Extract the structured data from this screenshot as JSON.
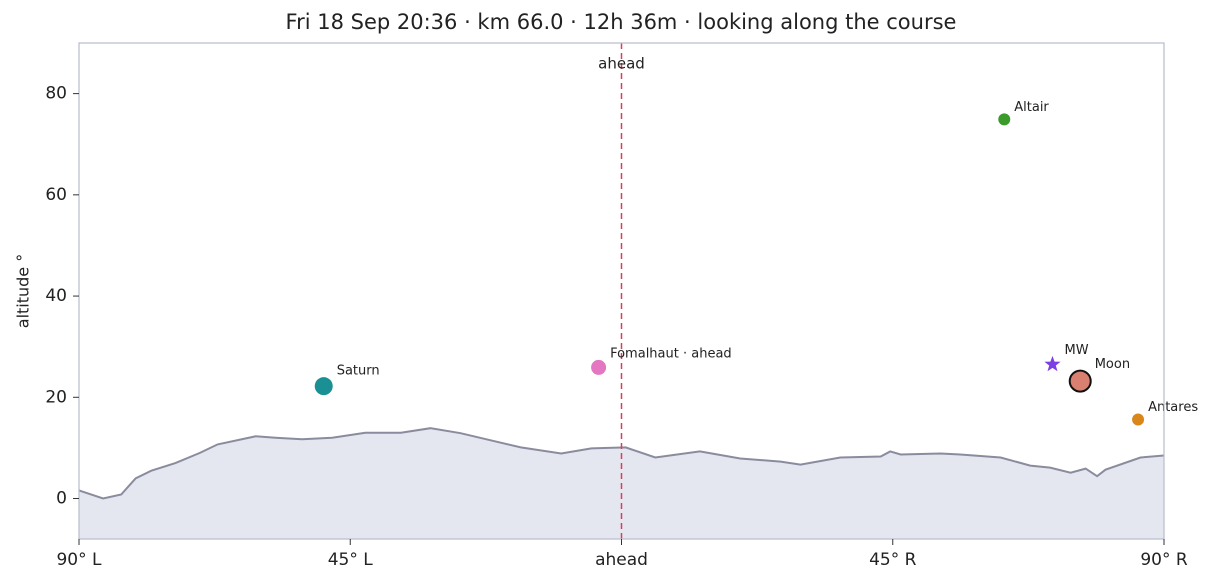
{
  "chart_data": {
    "type": "sky",
    "title": "Fri 18 Sep 20:36  ·  km 66.0  ·  12h 36m  ·  looking along the course",
    "ylabel": "altitude °",
    "xlim": [
      -90,
      90
    ],
    "ylim": [
      -8,
      90
    ],
    "xticks": [
      {
        "value": -90,
        "label": "90° L"
      },
      {
        "value": -45,
        "label": "45° L"
      },
      {
        "value": 0,
        "label": "ahead"
      },
      {
        "value": 45,
        "label": "45° R"
      },
      {
        "value": 90,
        "label": "90° R"
      }
    ],
    "yticks": [
      0,
      20,
      40,
      60,
      80
    ],
    "reference": {
      "x": 0,
      "label": "ahead",
      "color": "#dc3c5a"
    },
    "horizon": {
      "color": "#8a8c9e",
      "fill": "#e4e6f0",
      "x": [
        -90,
        -86,
        -83,
        -80.6,
        -78,
        -74,
        -70,
        -67,
        -60.7,
        -57.4,
        -53,
        -48,
        -42.5,
        -36.6,
        -31.7,
        -26.7,
        -21.7,
        -16.7,
        -10,
        -5,
        0.7,
        5.6,
        13,
        19.7,
        26.4,
        29.7,
        36.3,
        43,
        44.6,
        46.3,
        52.9,
        56.2,
        62.9,
        67.8,
        71.1,
        74.5,
        77,
        78.9,
        80.3,
        86.1,
        90
      ],
      "values": [
        1.6,
        0,
        0.8,
        4,
        5.5,
        7,
        9,
        10.7,
        12.3,
        12,
        11.7,
        12,
        13,
        13,
        13.9,
        12.9,
        11.5,
        10.1,
        8.9,
        9.9,
        10.1,
        8.1,
        9.3,
        7.9,
        7.3,
        6.7,
        8.1,
        8.3,
        9.3,
        8.7,
        8.9,
        8.7,
        8.1,
        6.5,
        6.1,
        5.1,
        5.9,
        4.4,
        5.7,
        8.1,
        8.5
      ]
    },
    "objects": [
      {
        "name": "Saturn",
        "x": -49.4,
        "y": 22.2,
        "color": "#1a8f94",
        "label_color": "#1a8f94",
        "marker": "large"
      },
      {
        "name": "Fomalhaut · ahead",
        "x": -3.8,
        "y": 25.9,
        "color": "#e377c2",
        "label_color": "#e08a1e",
        "marker": "medium"
      },
      {
        "name": "Altair",
        "x": 63.5,
        "y": 74.9,
        "color": "#3a9a2a",
        "label_color": "#3a9a2a",
        "marker": "small"
      },
      {
        "name": "MW",
        "x": 71.5,
        "y": 26.5,
        "color": "#7b3fe4",
        "label_color": "#7b3fe4",
        "marker": "star"
      },
      {
        "name": "Moon",
        "x": 76.1,
        "y": 23.2,
        "color": "#d98070",
        "label_color": "#d98070",
        "marker": "outlined"
      },
      {
        "name": "Antares",
        "x": 85.7,
        "y": 15.6,
        "color": "#d9861a",
        "label_color": "#d9861a",
        "marker": "small"
      }
    ]
  }
}
